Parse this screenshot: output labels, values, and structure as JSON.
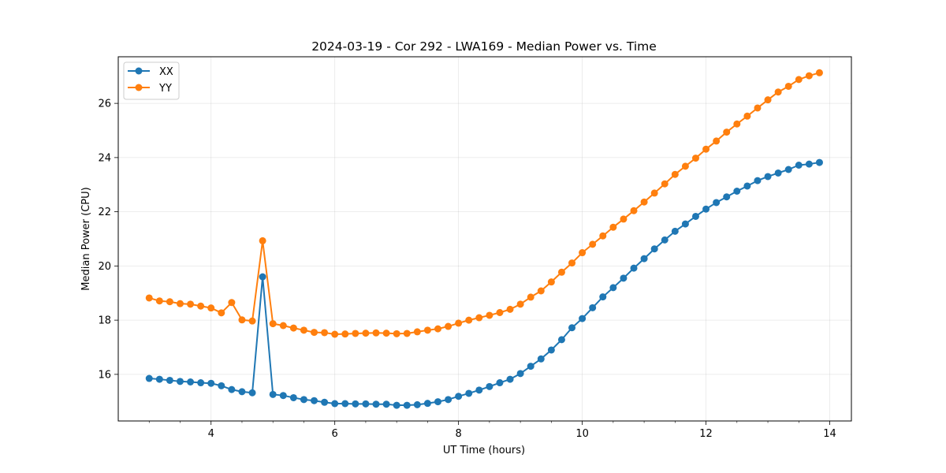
{
  "chart_data": {
    "type": "line",
    "title": "2024-03-19 - Cor 292 - LWA169 - Median Power vs. Time",
    "xlabel": "UT Time (hours)",
    "ylabel": "Median Power (CPU)",
    "xlim": [
      2.5,
      14.35
    ],
    "ylim": [
      14.28,
      27.72
    ],
    "xticks": [
      4,
      6,
      8,
      10,
      12,
      14
    ],
    "yticks": [
      16,
      18,
      20,
      22,
      24,
      26
    ],
    "grid": true,
    "legend_position": "top-left",
    "x": [
      3.0,
      3.1667,
      3.3333,
      3.5,
      3.6667,
      3.8333,
      4.0,
      4.1667,
      4.3333,
      4.5,
      4.6667,
      4.8333,
      5.0,
      5.1667,
      5.3333,
      5.5,
      5.6667,
      5.8333,
      6.0,
      6.1667,
      6.3333,
      6.5,
      6.6667,
      6.8333,
      7.0,
      7.1667,
      7.3333,
      7.5,
      7.6667,
      7.8333,
      8.0,
      8.1667,
      8.3333,
      8.5,
      8.6667,
      8.8333,
      9.0,
      9.1667,
      9.3333,
      9.5,
      9.6667,
      9.8333,
      10.0,
      10.1667,
      10.3333,
      10.5,
      10.6667,
      10.8333,
      11.0,
      11.1667,
      11.3333,
      11.5,
      11.6667,
      11.8333,
      12.0,
      12.1667,
      12.3333,
      12.5,
      12.6667,
      12.8333,
      13.0,
      13.1667,
      13.3333,
      13.5,
      13.6667,
      13.8333
    ],
    "series": [
      {
        "name": "XX",
        "color": "#1f77b4",
        "values": [
          15.85,
          15.82,
          15.78,
          15.74,
          15.72,
          15.69,
          15.67,
          15.58,
          15.44,
          15.36,
          15.32,
          19.6,
          15.26,
          15.22,
          15.14,
          15.07,
          15.03,
          14.97,
          14.92,
          14.92,
          14.91,
          14.91,
          14.9,
          14.9,
          14.86,
          14.86,
          14.88,
          14.93,
          14.99,
          15.07,
          15.19,
          15.3,
          15.42,
          15.55,
          15.69,
          15.82,
          16.03,
          16.3,
          16.57,
          16.9,
          17.28,
          17.72,
          18.06,
          18.46,
          18.86,
          19.2,
          19.55,
          19.92,
          20.27,
          20.63,
          20.96,
          21.28,
          21.55,
          21.83,
          22.1,
          22.34,
          22.55,
          22.76,
          22.95,
          23.15,
          23.3,
          23.43,
          23.56,
          23.72,
          23.76,
          23.82
        ]
      },
      {
        "name": "YY",
        "color": "#ff7f0e",
        "values": [
          18.82,
          18.71,
          18.68,
          18.61,
          18.59,
          18.52,
          18.45,
          18.27,
          18.65,
          18.01,
          17.97,
          20.93,
          17.87,
          17.8,
          17.71,
          17.63,
          17.55,
          17.54,
          17.48,
          17.49,
          17.51,
          17.52,
          17.53,
          17.52,
          17.5,
          17.51,
          17.57,
          17.63,
          17.68,
          17.77,
          17.89,
          18.0,
          18.09,
          18.18,
          18.28,
          18.4,
          18.59,
          18.85,
          19.08,
          19.41,
          19.77,
          20.11,
          20.49,
          20.8,
          21.11,
          21.43,
          21.73,
          22.04,
          22.36,
          22.69,
          23.03,
          23.38,
          23.68,
          23.98,
          24.31,
          24.61,
          24.94,
          25.24,
          25.53,
          25.83,
          26.13,
          26.42,
          26.63,
          26.88,
          27.02,
          27.13
        ]
      }
    ]
  }
}
